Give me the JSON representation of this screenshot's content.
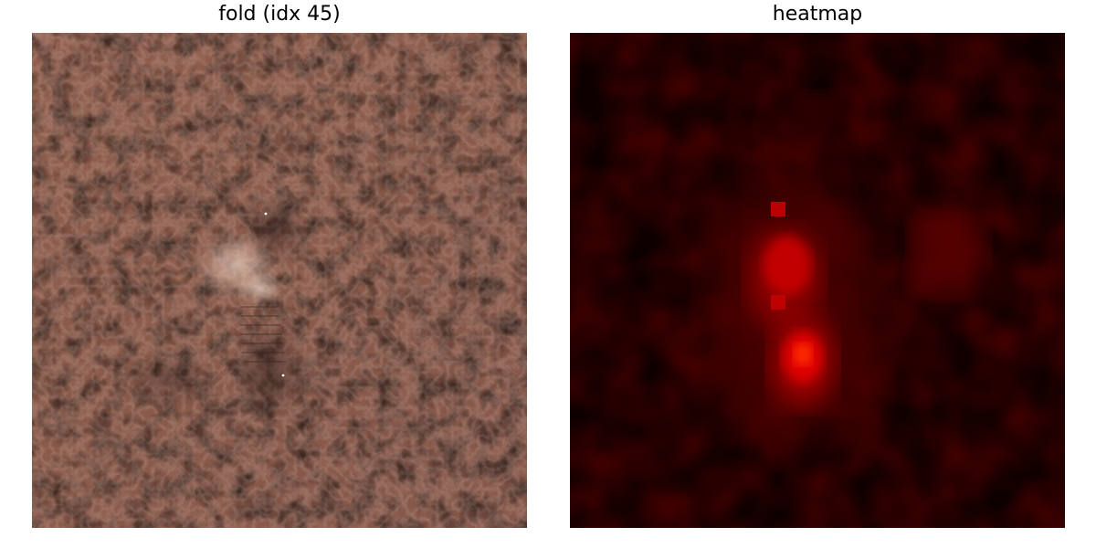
{
  "panels": [
    {
      "title": "fold (idx 45)",
      "image": "leather-texture-with-fold-defect",
      "background_color": "#8c5b4b"
    },
    {
      "title": "heatmap",
      "image": "anomaly-heatmap",
      "colormap": "hot",
      "background_color": "#1a0000"
    }
  ]
}
